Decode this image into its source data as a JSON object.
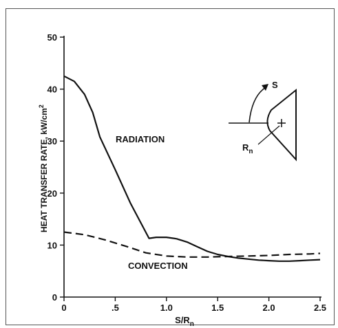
{
  "chart_data": {
    "type": "line",
    "xlabel": "S/R",
    "xlabel_sub": "n",
    "ylabel": "HEAT TRANSFER RATE, kW/cm",
    "ylabel_sup": "2",
    "xlim": [
      0,
      2.5
    ],
    "ylim": [
      0,
      50
    ],
    "x_tick_labels": [
      "0",
      ".5",
      "1.0",
      "1.5",
      "2.0",
      "2.5"
    ],
    "x_tick_values": [
      0,
      0.5,
      1.0,
      1.5,
      2.0,
      2.5
    ],
    "y_tick_labels": [
      "0",
      "10",
      "20",
      "30",
      "40",
      "50"
    ],
    "y_tick_values": [
      0,
      10,
      20,
      30,
      40,
      50
    ],
    "grid": false,
    "series": [
      {
        "name": "RADIATION",
        "style": "solid",
        "x": [
          0,
          0.1,
          0.2,
          0.28,
          0.35,
          0.5,
          0.65,
          0.83,
          0.9,
          1.0,
          1.1,
          1.2,
          1.3,
          1.4,
          1.5,
          1.6,
          1.7,
          1.8,
          1.9,
          2.0,
          2.1,
          2.2,
          2.3,
          2.4,
          2.5
        ],
        "y": [
          42.5,
          41.5,
          39.0,
          35.5,
          30.8,
          24.5,
          18.0,
          11.3,
          11.5,
          11.5,
          11.2,
          10.6,
          9.7,
          8.8,
          8.2,
          7.8,
          7.5,
          7.3,
          7.1,
          7.0,
          6.9,
          6.9,
          7.0,
          7.1,
          7.2
        ]
      },
      {
        "name": "CONVECTION",
        "style": "dashed",
        "x": [
          0,
          0.2,
          0.4,
          0.6,
          0.8,
          1.0,
          1.2,
          1.4,
          1.6,
          1.8,
          2.0,
          2.2,
          2.4,
          2.5
        ],
        "y": [
          12.5,
          12.0,
          11.0,
          9.8,
          8.5,
          7.9,
          7.7,
          7.7,
          7.8,
          7.9,
          8.0,
          8.2,
          8.3,
          8.4
        ]
      }
    ],
    "annotations": {
      "radiation_label": "RADIATION",
      "convection_label": "CONVECTION",
      "inset_s_label": "S",
      "inset_r_label": "R",
      "inset_r_sub": "n"
    }
  }
}
